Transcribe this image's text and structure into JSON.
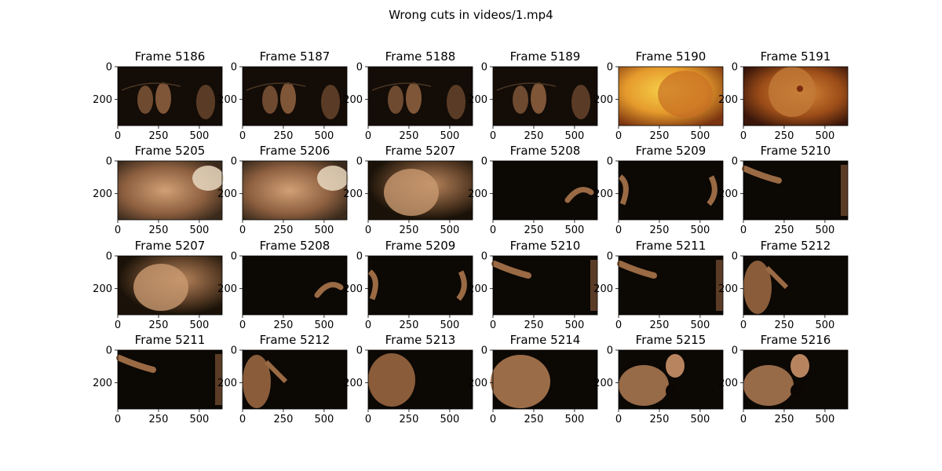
{
  "figure": {
    "suptitle": "Wrong cuts in videos/1.mp4"
  },
  "chart_data": {
    "type": "image-grid",
    "title": "Wrong cuts in videos/1.mp4",
    "x_ticks": [
      "0",
      "250",
      "500"
    ],
    "y_ticks": [
      "0",
      "200"
    ],
    "xlim": [
      0,
      640
    ],
    "ylim": [
      360,
      0
    ],
    "rows": [
      [
        {
          "title": "Frame 5186",
          "tone": "dark-scene"
        },
        {
          "title": "Frame 5187",
          "tone": "dark-scene"
        },
        {
          "title": "Frame 5188",
          "tone": "dark-scene"
        },
        {
          "title": "Frame 5189",
          "tone": "dark-scene"
        },
        {
          "title": "Frame 5190",
          "tone": "bright-yellow"
        },
        {
          "title": "Frame 5191",
          "tone": "orange-glow"
        }
      ],
      [
        {
          "title": "Frame 5205",
          "tone": "blurred-skin"
        },
        {
          "title": "Frame 5206",
          "tone": "blurred-skin"
        },
        {
          "title": "Frame 5207",
          "tone": "blurred-skin-dark"
        },
        {
          "title": "Frame 5208",
          "tone": "dark-right-figure"
        },
        {
          "title": "Frame 5209",
          "tone": "dark-both"
        },
        {
          "title": "Frame 5210",
          "tone": "dark-left-figure"
        }
      ],
      [
        {
          "title": "Frame 5207",
          "tone": "blurred-skin-dark"
        },
        {
          "title": "Frame 5208",
          "tone": "dark-right-figure"
        },
        {
          "title": "Frame 5209",
          "tone": "dark-both"
        },
        {
          "title": "Frame 5210",
          "tone": "dark-left-figure"
        },
        {
          "title": "Frame 5211",
          "tone": "dark-left-figure"
        },
        {
          "title": "Frame 5212",
          "tone": "dark-torso-left"
        }
      ],
      [
        {
          "title": "Frame 5211",
          "tone": "dark-left-figure"
        },
        {
          "title": "Frame 5212",
          "tone": "dark-torso-left"
        },
        {
          "title": "Frame 5213",
          "tone": "dark-torso-center"
        },
        {
          "title": "Frame 5214",
          "tone": "skin-left"
        },
        {
          "title": "Frame 5215",
          "tone": "face-center"
        },
        {
          "title": "Frame 5216",
          "tone": "face-center"
        }
      ]
    ]
  },
  "colors": {
    "axis": "#000000",
    "background": "#ffffff"
  }
}
